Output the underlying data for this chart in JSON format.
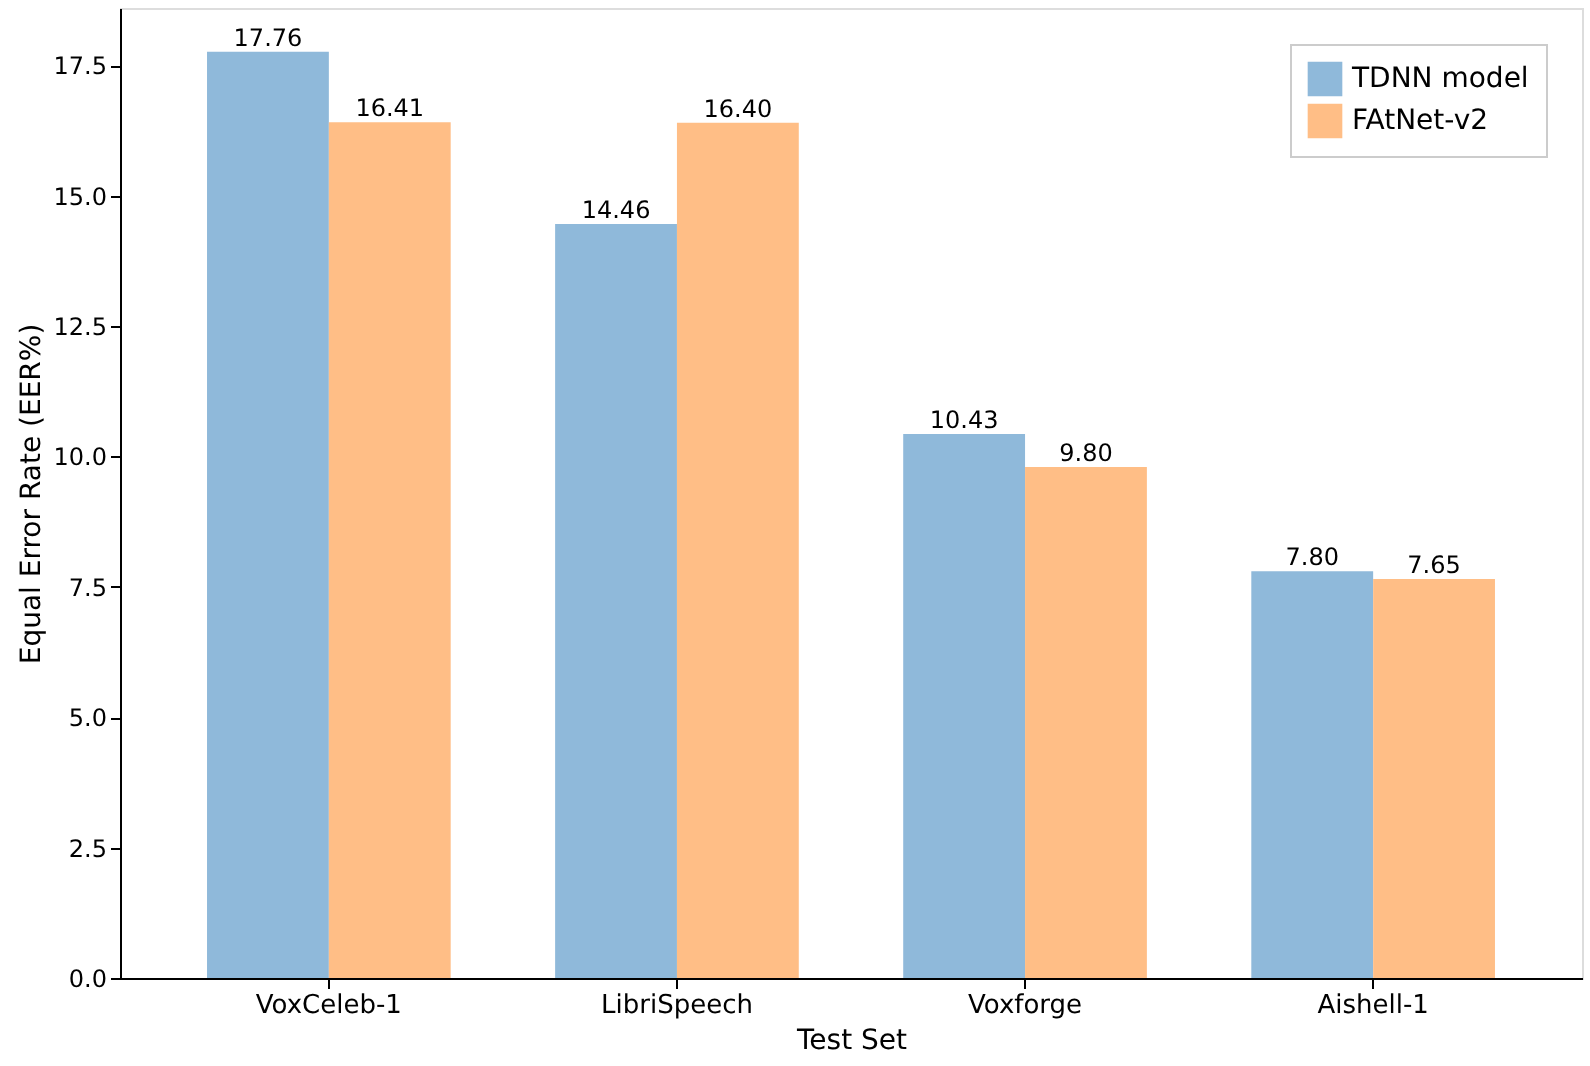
{
  "chart_data": {
    "type": "bar",
    "xlabel": "Test Set",
    "ylabel": "Equal Error Rate (EER%)",
    "categories": [
      "VoxCeleb-1",
      "LibriSpeech",
      "Voxforge",
      "Aishell-1"
    ],
    "series": [
      {
        "name": "TDNN model",
        "color": "#8fb9da",
        "values": [
          17.76,
          14.46,
          10.43,
          7.8
        ],
        "value_labels": [
          "17.76",
          "14.46",
          "10.43",
          "7.80"
        ]
      },
      {
        "name": "FAtNet-v2",
        "color": "#ffbe86",
        "values": [
          16.41,
          16.4,
          9.8,
          7.65
        ],
        "value_labels": [
          "16.41",
          "16.40",
          "9.80",
          "7.65"
        ]
      }
    ],
    "ylim": [
      0,
      18.6
    ],
    "yticks": [
      {
        "value": 0,
        "label": "0.0"
      },
      {
        "value": 2.5,
        "label": "2.5"
      },
      {
        "value": 5,
        "label": "5.0"
      },
      {
        "value": 7.5,
        "label": "7.5"
      },
      {
        "value": 10,
        "label": "10.0"
      },
      {
        "value": 12.5,
        "label": "12.5"
      },
      {
        "value": 15,
        "label": "15.0"
      },
      {
        "value": 17.5,
        "label": "17.5"
      }
    ],
    "legend": "top right",
    "grid": false
  }
}
